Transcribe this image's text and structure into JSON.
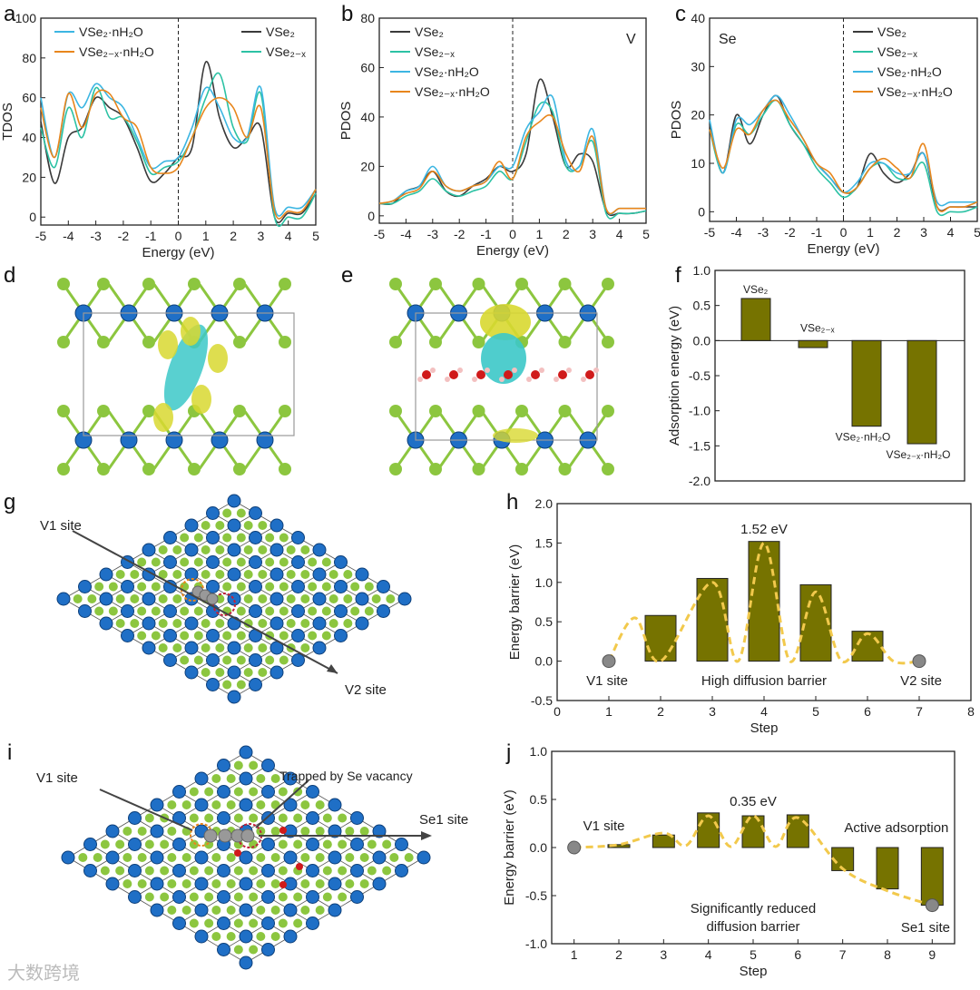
{
  "panel_labels": [
    "a",
    "b",
    "c",
    "d",
    "e",
    "f",
    "g",
    "h",
    "i",
    "j"
  ],
  "watermark": "大数跨境",
  "colors": {
    "VSe2": "#3a3a3a",
    "VSe2-x": "#2cc2a4",
    "VSe2·nH2O": "#3cb6e2",
    "VSe2-x·nH2O": "#e8861c",
    "bar": "#767300",
    "path": "#f2c94c",
    "blue_atom": "#1f6fc6",
    "green_atom": "#8cc63f"
  },
  "chart_data": [
    {
      "id": "a",
      "type": "line",
      "xlabel": "Energy (eV)",
      "ylabel": "TDOS",
      "xlim": [
        -5,
        5
      ],
      "ylim": [
        0,
        100
      ],
      "xticks": [
        -5,
        -4,
        -3,
        -2,
        -1,
        0,
        1,
        2,
        3,
        4,
        5
      ],
      "yticks": [
        0,
        20,
        40,
        60,
        80,
        100
      ],
      "x": [
        -5,
        -4.5,
        -4,
        -3.5,
        -3,
        -2.5,
        -2,
        -1.5,
        -1,
        -0.5,
        0,
        0.5,
        1,
        1.5,
        2,
        2.5,
        3,
        3.5,
        4,
        4.5,
        5
      ],
      "series": [
        {
          "name": "VSe₂",
          "key": "VSe2",
          "values": [
            48,
            17,
            40,
            45,
            60,
            55,
            50,
            35,
            18,
            22,
            30,
            35,
            78,
            50,
            35,
            40,
            45,
            0,
            2,
            2,
            12
          ]
        },
        {
          "name": "VSe₂₋ₓ",
          "key": "VSe2-x",
          "values": [
            45,
            25,
            55,
            40,
            65,
            50,
            50,
            38,
            22,
            25,
            28,
            40,
            60,
            72,
            45,
            38,
            62,
            0,
            0,
            0,
            12
          ]
        },
        {
          "name": "VSe₂·nH₂O",
          "key": "VSe2·nH2O",
          "values": [
            60,
            30,
            62,
            55,
            67,
            60,
            55,
            40,
            25,
            28,
            30,
            45,
            65,
            55,
            40,
            40,
            65,
            5,
            5,
            5,
            14
          ]
        },
        {
          "name": "VSe₂₋ₓ·nH₂O",
          "key": "VSe2-x·nH2O",
          "values": [
            55,
            30,
            62,
            45,
            62,
            62,
            50,
            45,
            25,
            22,
            25,
            40,
            55,
            60,
            55,
            40,
            55,
            3,
            3,
            3,
            14
          ]
        }
      ],
      "legend": "top-left and top-right",
      "annotation": ""
    },
    {
      "id": "b",
      "type": "line",
      "xlabel": "Energy (eV)",
      "ylabel": "PDOS",
      "xlim": [
        -5,
        5
      ],
      "ylim": [
        0,
        80
      ],
      "xticks": [
        -5,
        -4,
        -3,
        -2,
        -1,
        0,
        1,
        2,
        3,
        4,
        5
      ],
      "yticks": [
        0,
        20,
        40,
        60,
        80
      ],
      "x": [
        -5,
        -4.5,
        -4,
        -3.5,
        -3,
        -2.5,
        -2,
        -1.5,
        -1,
        -0.5,
        0,
        0.5,
        1,
        1.5,
        2,
        2.5,
        3,
        3.5,
        4,
        4.5,
        5
      ],
      "series": [
        {
          "name": "VSe₂",
          "key": "VSe2",
          "values": [
            5,
            5,
            10,
            12,
            18,
            10,
            8,
            12,
            15,
            20,
            18,
            25,
            55,
            40,
            20,
            25,
            22,
            2,
            1,
            1,
            2
          ]
        },
        {
          "name": "VSe₂₋ₓ",
          "key": "VSe2-x",
          "values": [
            5,
            5,
            8,
            10,
            15,
            10,
            8,
            10,
            12,
            18,
            15,
            30,
            45,
            42,
            20,
            20,
            30,
            1,
            1,
            1,
            2
          ]
        },
        {
          "name": "VSe₂·nH₂O",
          "key": "VSe2·nH2O",
          "values": [
            5,
            6,
            10,
            12,
            20,
            12,
            10,
            12,
            14,
            20,
            20,
            35,
            42,
            48,
            22,
            20,
            35,
            3,
            3,
            3,
            3
          ]
        },
        {
          "name": "VSe₂₋ₓ·nH₂O",
          "key": "VSe2-x·nH2O",
          "values": [
            5,
            6,
            9,
            11,
            18,
            12,
            10,
            12,
            14,
            22,
            15,
            32,
            38,
            40,
            25,
            18,
            32,
            3,
            3,
            3,
            3
          ]
        }
      ],
      "legend": "top-left",
      "annotation": "V"
    },
    {
      "id": "c",
      "type": "line",
      "xlabel": "Energy (eV)",
      "ylabel": "PDOS",
      "xlim": [
        -5,
        5
      ],
      "ylim": [
        0,
        40
      ],
      "xticks": [
        -5,
        -4,
        -3,
        -2,
        -1,
        0,
        1,
        2,
        3,
        4,
        5
      ],
      "yticks": [
        0,
        10,
        20,
        30,
        40
      ],
      "x": [
        -5,
        -4.5,
        -4,
        -3.5,
        -3,
        -2.5,
        -2,
        -1.5,
        -1,
        -0.5,
        0,
        0.5,
        1,
        1.5,
        2,
        2.5,
        3,
        3.5,
        4,
        4.5,
        5
      ],
      "series": [
        {
          "name": "VSe₂",
          "key": "VSe2",
          "values": [
            18,
            8,
            20,
            14,
            20,
            24,
            18,
            14,
            10,
            7,
            4,
            5,
            12,
            8,
            6,
            8,
            12,
            1,
            1,
            1,
            1
          ]
        },
        {
          "name": "VSe₂₋ₓ",
          "key": "VSe2-x",
          "values": [
            17,
            8,
            18,
            16,
            20,
            23,
            18,
            14,
            9,
            6,
            3,
            5,
            9,
            10,
            7,
            7,
            10,
            0,
            0,
            0,
            1
          ]
        },
        {
          "name": "VSe₂·nH₂O",
          "key": "VSe2·nH2O",
          "values": [
            19,
            8,
            19,
            18,
            21,
            24,
            20,
            15,
            10,
            7,
            4,
            6,
            10,
            10,
            8,
            8,
            12,
            2,
            2,
            2,
            2
          ]
        },
        {
          "name": "VSe₂₋ₓ·nH₂O",
          "key": "VSe2-x·nH2O",
          "values": [
            17,
            9,
            17,
            16,
            21,
            23,
            19,
            15,
            10,
            8,
            4,
            5,
            9,
            11,
            9,
            7,
            14,
            1,
            1,
            1,
            2
          ]
        }
      ],
      "legend": "top-right",
      "annotation": "Se"
    },
    {
      "id": "f",
      "type": "bar",
      "ylabel": "Adsorption energy (eV)",
      "ylim": [
        -2,
        1
      ],
      "yticks": [
        -2.0,
        -1.5,
        -1.0,
        -0.5,
        0.0,
        0.5,
        1.0
      ],
      "categories": [
        "VSe₂",
        "VSe₂₋ₓ",
        "VSe₂·nH₂O",
        "VSe₂₋ₓ·nH₂O"
      ],
      "values": [
        0.6,
        -0.1,
        -1.22,
        -1.47
      ]
    },
    {
      "id": "h",
      "type": "bar",
      "xlabel": "Step",
      "ylabel": "Energy barrier (eV)",
      "xlim": [
        0,
        8
      ],
      "ylim": [
        -0.5,
        2
      ],
      "xticks": [
        0,
        1,
        2,
        3,
        4,
        5,
        6,
        7,
        8
      ],
      "yticks": [
        -0.5,
        0.0,
        0.5,
        1.0,
        1.5,
        2.0
      ],
      "x": [
        2,
        3,
        4,
        5,
        6
      ],
      "values": [
        0.58,
        1.05,
        1.52,
        0.97,
        0.38
      ],
      "path_points": [
        [
          1,
          0
        ],
        [
          1.5,
          0.55
        ],
        [
          2,
          0
        ],
        [
          3,
          1.0
        ],
        [
          3.5,
          0
        ],
        [
          4,
          1.5
        ],
        [
          4.5,
          0
        ],
        [
          5,
          0.88
        ],
        [
          5.5,
          0
        ],
        [
          6,
          0.35
        ],
        [
          6.5,
          0
        ],
        [
          7,
          0
        ]
      ],
      "annotations": [
        "1.52 eV",
        "High diffusion barrier",
        "V1 site",
        "V2 site"
      ]
    },
    {
      "id": "j",
      "type": "bar",
      "xlabel": "Step",
      "ylabel": "Energy barrier (eV)",
      "xlim": [
        0.5,
        9.5
      ],
      "ylim": [
        -1,
        1
      ],
      "xticks": [
        1,
        2,
        3,
        4,
        5,
        6,
        7,
        8,
        9
      ],
      "yticks": [
        -1.0,
        -0.5,
        0.0,
        0.5,
        1.0
      ],
      "x": [
        2,
        3,
        4,
        5,
        6,
        7,
        8,
        9
      ],
      "values": [
        0.03,
        0.13,
        0.36,
        0.33,
        0.34,
        -0.24,
        -0.43,
        -0.6
      ],
      "path_points": [
        [
          1,
          0
        ],
        [
          2,
          0.03
        ],
        [
          3,
          0.15
        ],
        [
          3.5,
          0.02
        ],
        [
          4,
          0.33
        ],
        [
          4.5,
          0.01
        ],
        [
          5,
          0.33
        ],
        [
          5.5,
          0.01
        ],
        [
          6,
          0.31
        ],
        [
          7,
          -0.22
        ],
        [
          8,
          -0.45
        ],
        [
          9,
          -0.6
        ]
      ],
      "annotations": [
        "0.35 eV",
        "V1 site",
        "Active adsorption",
        "Significantly reduced",
        "diffusion barrier",
        "Se1 site"
      ]
    }
  ],
  "structures": {
    "g": {
      "labels": [
        "V1 site",
        "V2 site"
      ]
    },
    "i": {
      "labels": [
        "V1 site",
        "Trapped by Se vacancy",
        "Se1 site"
      ]
    }
  }
}
